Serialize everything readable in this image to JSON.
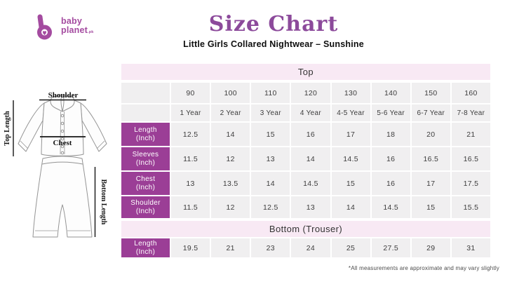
{
  "brand": {
    "word1": "baby",
    "word2": "planet",
    "tld": ".pk"
  },
  "header": {
    "title": "Size Chart",
    "subtitle": "Little Girls Collared Nightwear – Sunshine"
  },
  "diagram": {
    "shoulder": "Shoulder",
    "top_length": "Top Length",
    "chest": "Chest",
    "bottom_length": "Bottom Length"
  },
  "top_table": {
    "title": "Top",
    "sizes": [
      "90",
      "100",
      "110",
      "120",
      "130",
      "140",
      "150",
      "160"
    ],
    "ages": [
      "1 Year",
      "2 Year",
      "3 Year",
      "4 Year",
      "4-5 Year",
      "5-6 Year",
      "6-7 Year",
      "7-8 Year"
    ],
    "rows": [
      {
        "label": "Length",
        "sublabel": "(Inch)",
        "values": [
          "12.5",
          "14",
          "15",
          "16",
          "17",
          "18",
          "20",
          "21"
        ]
      },
      {
        "label": "Sleeves",
        "sublabel": "(Inch)",
        "values": [
          "11.5",
          "12",
          "13",
          "14",
          "14.5",
          "16",
          "16.5",
          "16.5"
        ]
      },
      {
        "label": "Chest",
        "sublabel": "(Inch)",
        "values": [
          "13",
          "13.5",
          "14",
          "14.5",
          "15",
          "16",
          "17",
          "17.5"
        ]
      },
      {
        "label": "Shoulder",
        "sublabel": "(Inch)",
        "values": [
          "11.5",
          "12",
          "12.5",
          "13",
          "14",
          "14.5",
          "15",
          "15.5"
        ]
      }
    ]
  },
  "bottom_table": {
    "title": "Bottom (Trouser)",
    "rows": [
      {
        "label": "Length",
        "sublabel": "(Inch)",
        "values": [
          "19.5",
          "21",
          "23",
          "24",
          "25",
          "27.5",
          "29",
          "31"
        ]
      }
    ]
  },
  "footnote": "*All measurements are approximate and may vary slightly",
  "chart_data": {
    "type": "table",
    "title": "Size Chart",
    "sections": [
      {
        "name": "Top",
        "columns_size": [
          "90",
          "100",
          "110",
          "120",
          "130",
          "140",
          "150",
          "160"
        ],
        "columns_age": [
          "1 Year",
          "2 Year",
          "3 Year",
          "4 Year",
          "4-5 Year",
          "5-6 Year",
          "6-7 Year",
          "7-8 Year"
        ],
        "rows": {
          "Length (Inch)": [
            12.5,
            14,
            15,
            16,
            17,
            18,
            20,
            21
          ],
          "Sleeves (Inch)": [
            11.5,
            12,
            13,
            14,
            14.5,
            16,
            16.5,
            16.5
          ],
          "Chest (Inch)": [
            13,
            13.5,
            14,
            14.5,
            15,
            16,
            17,
            17.5
          ],
          "Shoulder (Inch)": [
            11.5,
            12,
            12.5,
            13,
            14,
            14.5,
            15,
            15.5
          ]
        }
      },
      {
        "name": "Bottom (Trouser)",
        "rows": {
          "Length (Inch)": [
            19.5,
            21,
            23,
            24,
            25,
            27.5,
            29,
            31
          ]
        }
      }
    ]
  },
  "colors": {
    "purple_cell": "#9B3E96",
    "pink_band": "#F8E9F4",
    "cell_bg": "#F0EFF0",
    "title_purple": "#8C4A9B",
    "logo_purple": "#A44BA0"
  }
}
